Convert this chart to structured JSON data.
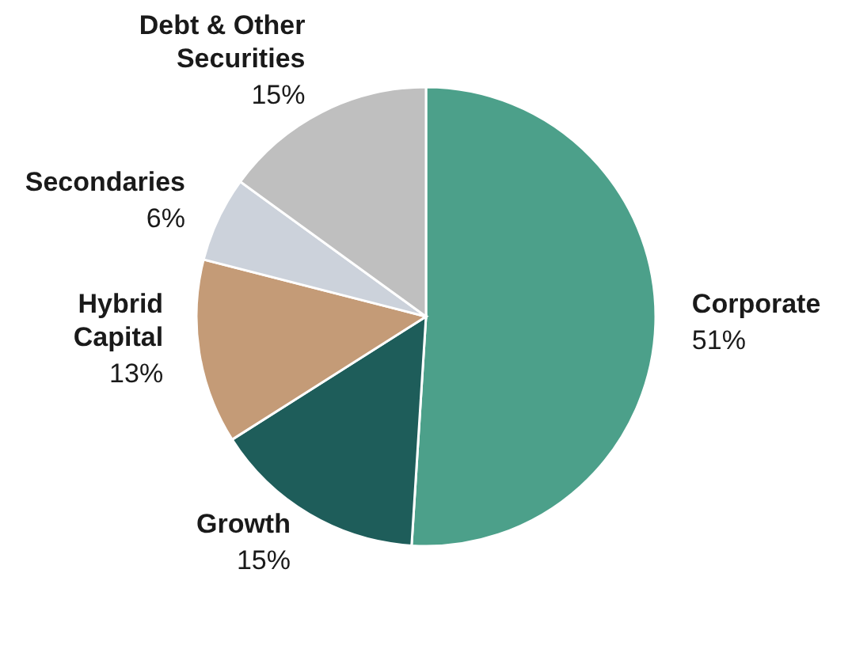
{
  "chart_data": {
    "type": "pie",
    "categories": [
      "Corporate",
      "Growth",
      "Hybrid Capital",
      "Secondaries",
      "Debt & Other Securities"
    ],
    "values": [
      51,
      15,
      13,
      6,
      15
    ],
    "value_labels": [
      "51%",
      "15%",
      "13%",
      "6%",
      "15%"
    ],
    "colors": [
      "#4ca08a",
      "#1e5d5a",
      "#c49b77",
      "#ccd2db",
      "#bfbfbf"
    ]
  }
}
